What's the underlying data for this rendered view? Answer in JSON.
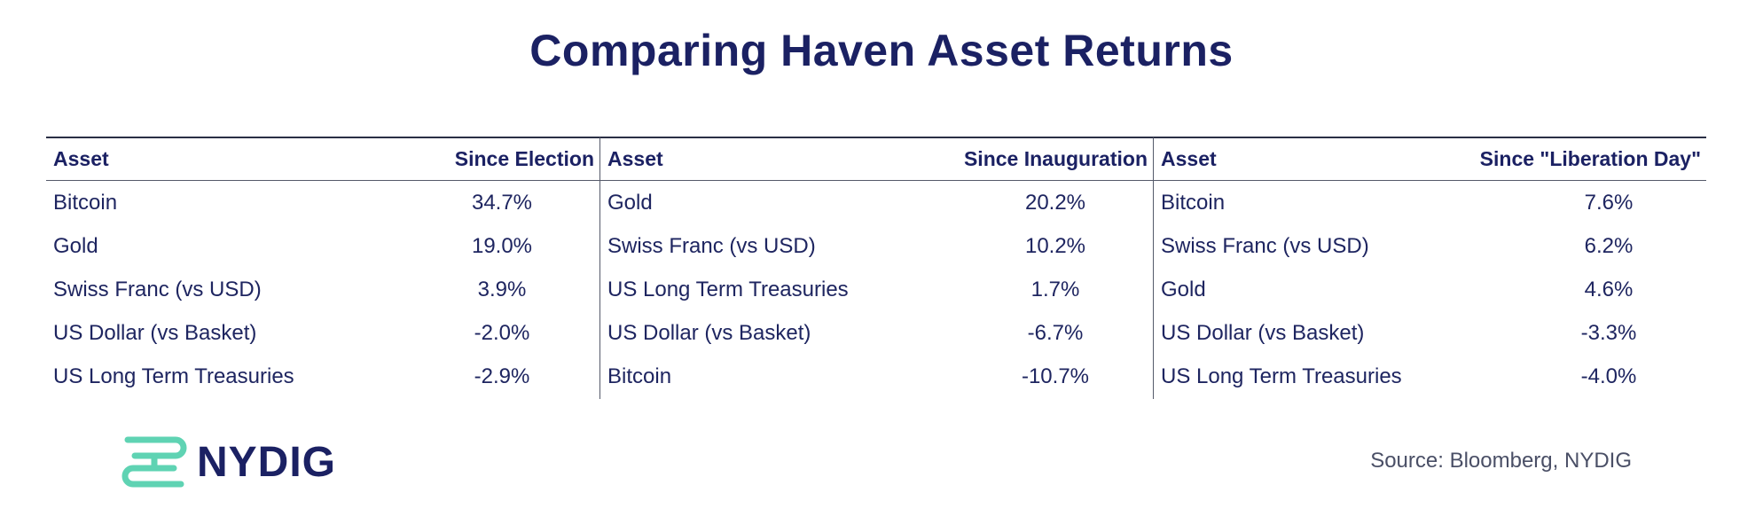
{
  "title": "Comparing Haven Asset Returns",
  "source": "Source: Bloomberg, NYDIG",
  "logo": {
    "text": "NYDIG",
    "icon": "nydig-logo-icon",
    "color": "#5fd3b3"
  },
  "chart_data": {
    "type": "table",
    "tables": [
      {
        "headers": [
          "Asset",
          "Since Election"
        ],
        "rows": [
          [
            "Bitcoin",
            "34.7%"
          ],
          [
            "Gold",
            "19.0%"
          ],
          [
            "Swiss Franc (vs USD)",
            "3.9%"
          ],
          [
            "US Dollar (vs Basket)",
            "-2.0%"
          ],
          [
            "US Long Term Treasuries",
            "-2.9%"
          ]
        ]
      },
      {
        "headers": [
          "Asset",
          "Since Inauguration"
        ],
        "rows": [
          [
            "Gold",
            "20.2%"
          ],
          [
            "Swiss Franc (vs USD)",
            "10.2%"
          ],
          [
            "US Long Term Treasuries",
            "1.7%"
          ],
          [
            "US Dollar (vs Basket)",
            "-6.7%"
          ],
          [
            "Bitcoin",
            "-10.7%"
          ]
        ]
      },
      {
        "headers": [
          "Asset",
          "Since \"Liberation Day\""
        ],
        "rows": [
          [
            "Bitcoin",
            "7.6%"
          ],
          [
            "Swiss Franc (vs USD)",
            "6.2%"
          ],
          [
            "Gold",
            "4.6%"
          ],
          [
            "US Dollar (vs Basket)",
            "-3.3%"
          ],
          [
            "US Long Term Treasuries",
            "-4.0%"
          ]
        ]
      }
    ]
  }
}
